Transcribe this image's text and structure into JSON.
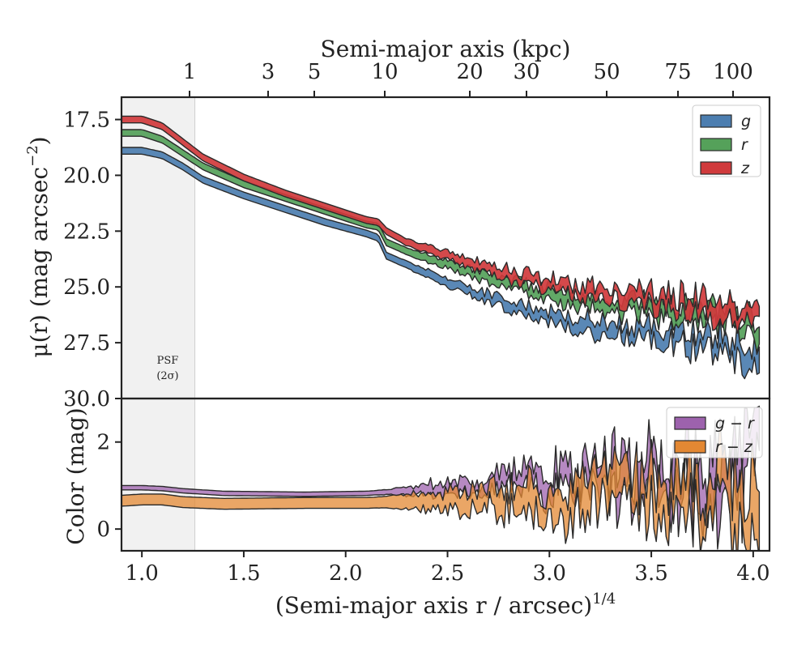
{
  "chart_data": [
    {
      "type": "area",
      "panel": "surface-brightness",
      "top_axis_title": "Semi-major axis (kpc)",
      "top_ticks_kpc": [
        "1",
        "3",
        "5",
        "10",
        "20",
        "30",
        "50",
        "75",
        "100"
      ],
      "ylabel_text": "μ(r) (mag arcsec",
      "ylabel_sup": "−2",
      "ylabel_close": ")",
      "y_ticks": [
        "17.5",
        "20.0",
        "22.5",
        "25.0",
        "27.5",
        "30.0"
      ],
      "ylim": [
        30.0,
        16.5
      ],
      "xlim": [
        0.9,
        4.08
      ],
      "psf_region_x": [
        0.9,
        1.26
      ],
      "psf_label_line1": "PSF",
      "psf_label_line2": "(2σ)",
      "legend_location": "upper right",
      "series": [
        {
          "name": "g",
          "color": "#4c7eb0",
          "x": [
            0.9,
            1.0,
            1.1,
            1.2,
            1.3,
            1.5,
            1.7,
            1.9,
            2.1,
            2.16,
            2.2,
            2.3,
            2.5,
            2.7,
            2.9,
            3.1,
            3.3,
            3.5,
            3.7,
            3.9,
            4.03
          ],
          "y": [
            18.9,
            18.9,
            19.1,
            19.6,
            20.2,
            20.9,
            21.5,
            22.1,
            22.6,
            22.8,
            23.6,
            24.0,
            24.8,
            25.5,
            26.1,
            26.6,
            26.9,
            27.1,
            27.4,
            27.7,
            28.0
          ],
          "band": 0.3
        },
        {
          "name": "r",
          "color": "#55a15a",
          "x": [
            0.9,
            1.0,
            1.1,
            1.2,
            1.3,
            1.5,
            1.7,
            1.9,
            2.1,
            2.16,
            2.2,
            2.3,
            2.5,
            2.7,
            2.9,
            3.1,
            3.3,
            3.5,
            3.7,
            3.9,
            4.03
          ],
          "y": [
            18.1,
            18.1,
            18.4,
            19.0,
            19.6,
            20.4,
            21.0,
            21.6,
            22.2,
            22.3,
            23.0,
            23.4,
            24.0,
            24.6,
            25.1,
            25.5,
            25.8,
            26.0,
            26.2,
            26.5,
            26.9
          ],
          "band": 0.3
        },
        {
          "name": "z",
          "color": "#d03a3c",
          "x": [
            0.9,
            1.0,
            1.1,
            1.2,
            1.3,
            1.5,
            1.7,
            1.9,
            2.1,
            2.16,
            2.2,
            2.3,
            2.5,
            2.7,
            2.9,
            3.1,
            3.3,
            3.5,
            3.7,
            3.9,
            4.03
          ],
          "y": [
            17.5,
            17.5,
            17.8,
            18.5,
            19.2,
            20.1,
            20.8,
            21.4,
            22.0,
            22.1,
            22.5,
            23.0,
            23.6,
            24.2,
            24.7,
            25.1,
            25.4,
            25.6,
            25.8,
            26.0,
            26.3
          ],
          "band": 0.3
        }
      ]
    },
    {
      "type": "area",
      "panel": "color",
      "ylabel": "Color (mag)",
      "xlabel_text": "(Semi-major axis r / arcsec)",
      "xlabel_sup": "1/4",
      "x_ticks": [
        "1.0",
        "1.5",
        "2.0",
        "2.5",
        "3.0",
        "3.5",
        "4.0"
      ],
      "y_ticks": [
        "0",
        "2"
      ],
      "ylim": [
        -0.5,
        3.0
      ],
      "legend_location": "upper right",
      "series": [
        {
          "name": "g − r",
          "color": "#9d62ad",
          "x": [
            0.9,
            1.0,
            1.1,
            1.2,
            1.4,
            1.8,
            2.1,
            2.2,
            2.4,
            2.6,
            2.8,
            3.0,
            3.2,
            3.4,
            3.6,
            3.8,
            4.03
          ],
          "y": [
            0.95,
            0.95,
            0.93,
            0.88,
            0.82,
            0.8,
            0.82,
            0.85,
            0.9,
            0.95,
            1.0,
            1.05,
            1.1,
            1.15,
            1.2,
            1.25,
            1.3
          ],
          "band": 0.1
        },
        {
          "name": "r − z",
          "color": "#e38833",
          "x": [
            0.9,
            1.0,
            1.1,
            1.2,
            1.4,
            1.8,
            2.1,
            2.2,
            2.4,
            2.6,
            2.8,
            3.0,
            3.2,
            3.4,
            3.6,
            3.8,
            4.03
          ],
          "y": [
            0.65,
            0.68,
            0.68,
            0.62,
            0.58,
            0.6,
            0.6,
            0.62,
            0.65,
            0.68,
            0.7,
            0.72,
            0.75,
            0.78,
            0.8,
            0.82,
            0.85
          ],
          "band": 0.25
        }
      ]
    }
  ]
}
